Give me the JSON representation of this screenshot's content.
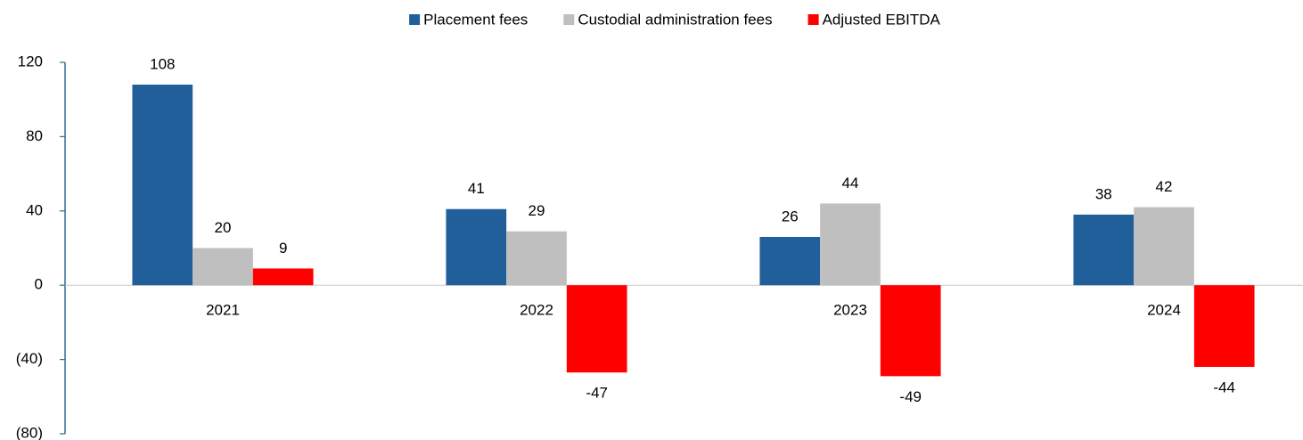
{
  "chart_data": {
    "type": "bar",
    "categories": [
      "2021",
      "2022",
      "2023",
      "2024"
    ],
    "series": [
      {
        "name": "Placement fees",
        "color": "#215f9a",
        "values": [
          108,
          41,
          26,
          38
        ]
      },
      {
        "name": "Custodial administration fees",
        "color": "#bfbfbf",
        "values": [
          20,
          29,
          44,
          42
        ]
      },
      {
        "name": "Adjusted EBITDA",
        "color": "#ff0000",
        "values": [
          9,
          -47,
          -49,
          -44
        ]
      }
    ],
    "ylim": [
      -80,
      120
    ],
    "yticks": [
      120,
      80,
      40,
      0,
      {
        "value": -40,
        "label": "(40)"
      },
      {
        "value": -80,
        "label": "(80)"
      }
    ],
    "legend": "top"
  }
}
